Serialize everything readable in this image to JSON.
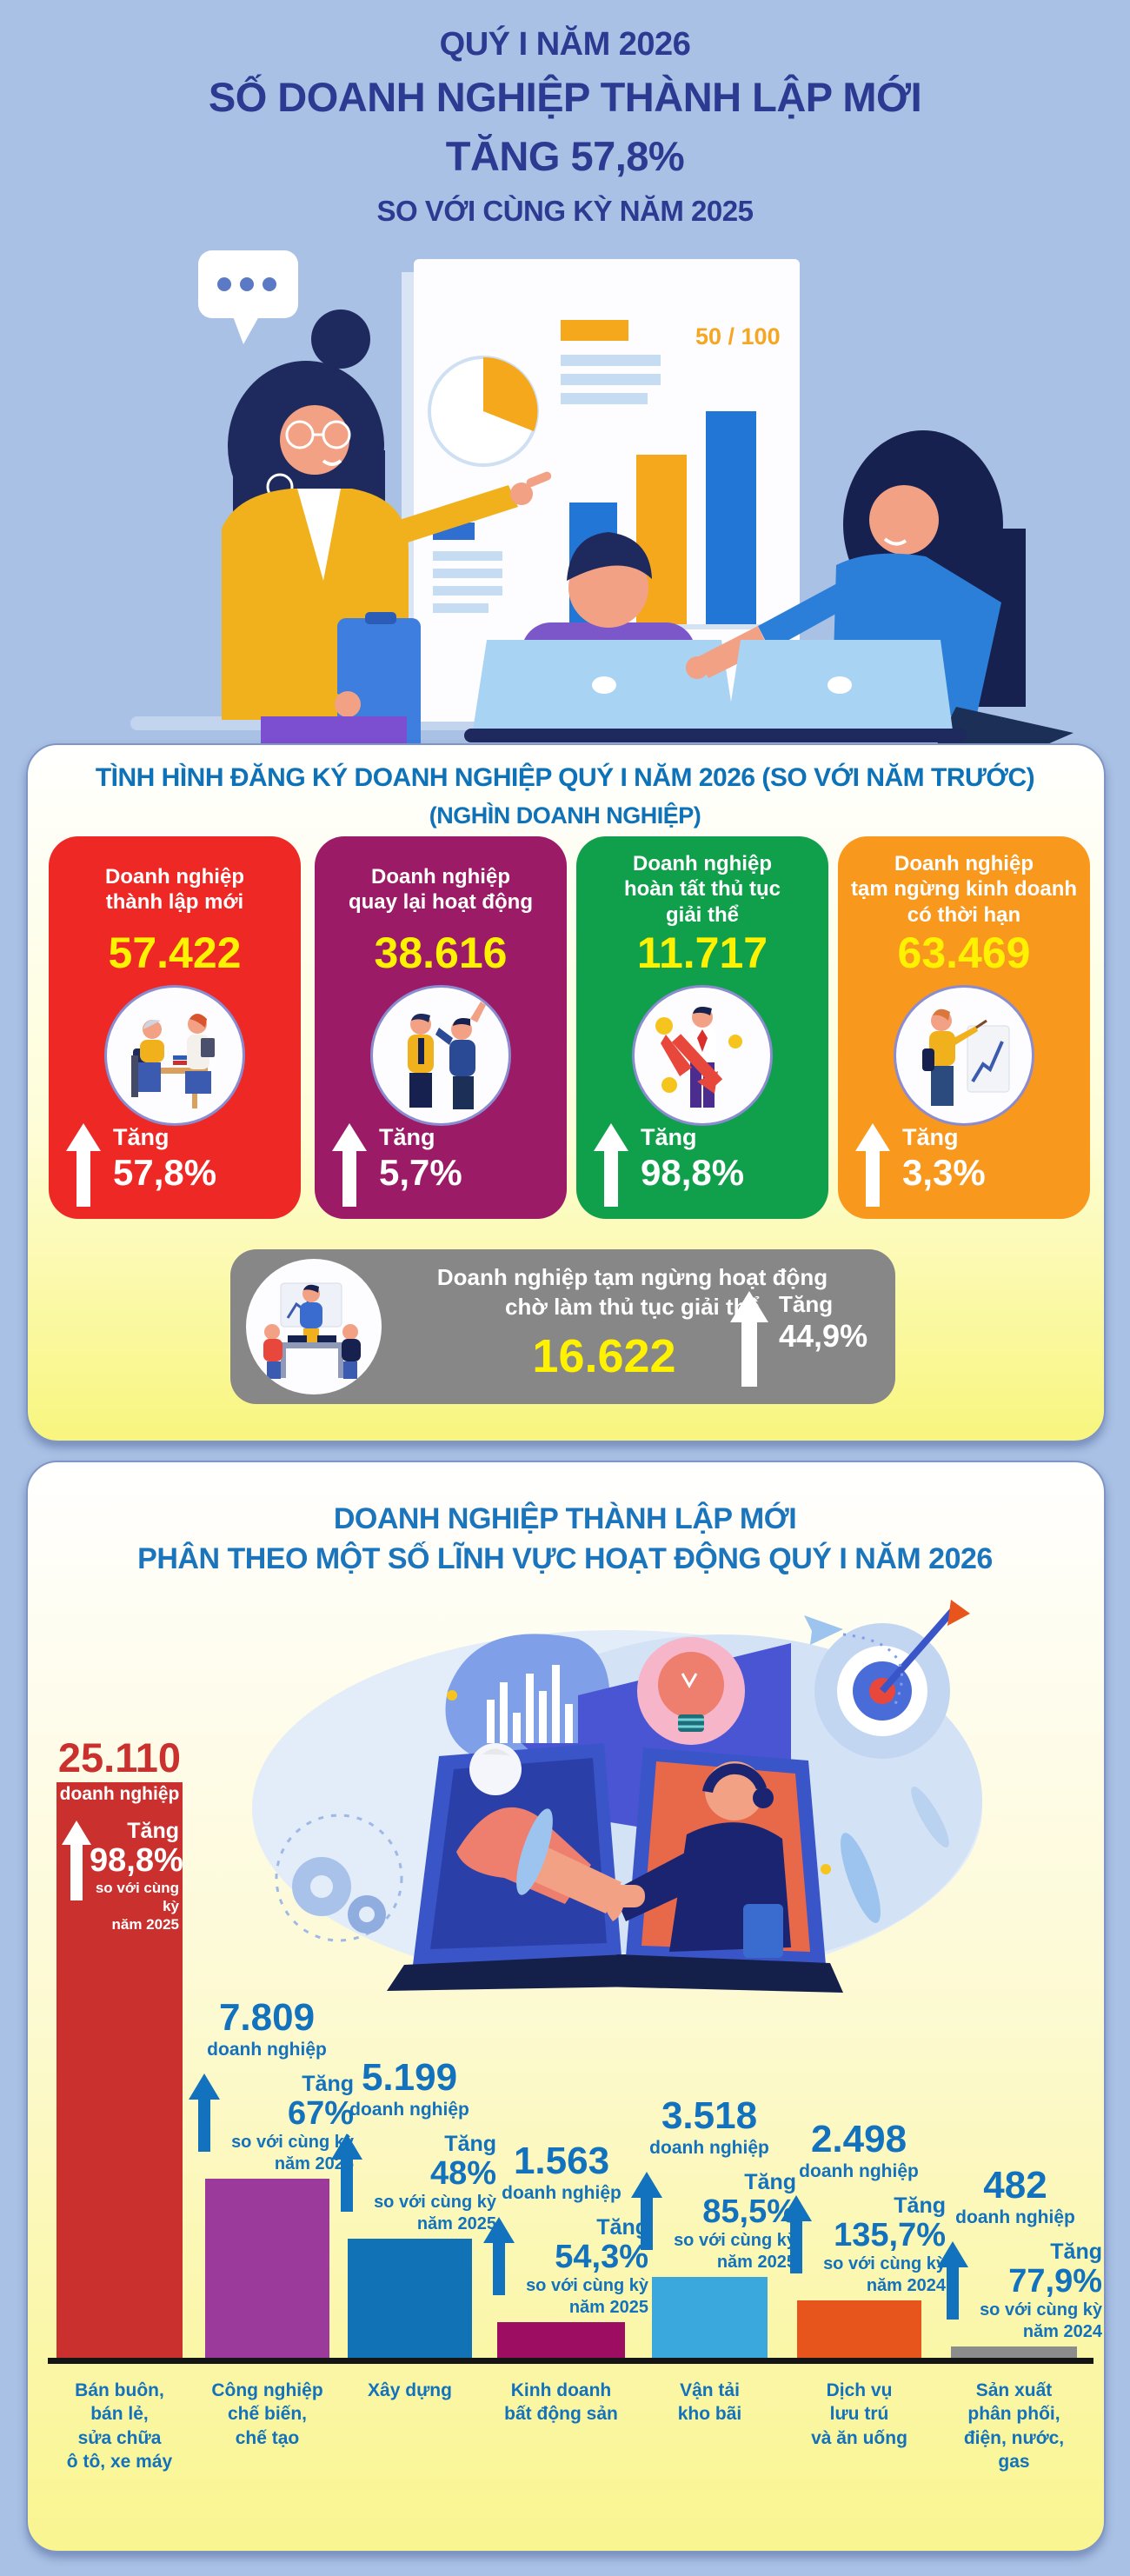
{
  "header": {
    "line1": "QUÝ I NĂM 2026",
    "line2": "SỐ DOANH NGHIỆP THÀNH LẬP MỚI",
    "line3": "TĂNG 57,8%",
    "line4": "SO VỚI CÙNG KỲ NĂM 2025"
  },
  "hero": {
    "score_label": "50 / 100"
  },
  "panel1": {
    "title": "TÌNH HÌNH ĐĂNG KÝ DOANH NGHIỆP QUÝ I NĂM 2026 (SO VỚI NĂM TRƯỚC)",
    "subtitle": "(NGHÌN DOANH NGHIỆP)",
    "cards": [
      {
        "title": "Doanh nghiệp\nthành lập mới",
        "value": "57.422",
        "rise_label": "Tăng",
        "rise_value": "57,8%",
        "color": "#ee2824"
      },
      {
        "title": "Doanh nghiệp\nquay lại hoạt động",
        "value": "38.616",
        "rise_label": "Tăng",
        "rise_value": "5,7%",
        "color": "#9b1b66"
      },
      {
        "title": "Doanh nghiệp\nhoàn tất thủ tục\ngiải thể",
        "value": "11.717",
        "rise_label": "Tăng",
        "rise_value": "98,8%",
        "color": "#10a04c"
      },
      {
        "title": "Doanh nghiệp\ntạm ngừng kinh doanh\ncó thời hạn",
        "value": "63.469",
        "rise_label": "Tăng",
        "rise_value": "3,3%",
        "color": "#f8981d"
      }
    ],
    "highlight_card": {
      "title": "Doanh nghiệp tạm ngừng hoạt động\nchờ làm thủ tục giải thể",
      "value": "16.622",
      "rise_label": "Tăng",
      "rise_value": "44,9%",
      "color": "#878787"
    }
  },
  "panel2": {
    "title": "DOANH NGHIỆP THÀNH LẬP MỚI",
    "subtitle": "PHÂN THEO MỘT SỐ LĨNH VỰC HOẠT ĐỘNG QUÝ I NĂM 2026"
  },
  "chart_data": {
    "type": "bar",
    "title": "Doanh nghiệp thành lập mới phân theo một số lĩnh vực hoạt động Quý I năm 2026",
    "unit_label": "doanh nghiệp",
    "categories": [
      "Bán buôn,\nbán lẻ,\nsửa chữa\nô tô, xe máy",
      "Công nghiệp\nchế biến,\nchế tạo",
      "Xây dựng",
      "Kinh doanh\nbất động sản",
      "Vận tải\nkho bãi",
      "Dịch vụ\nlưu trú\nvà ăn uống",
      "Sản xuất\nphân phối,\nđiện, nước,\ngas"
    ],
    "values": [
      25110,
      7809,
      5199,
      1563,
      3518,
      2498,
      482
    ],
    "value_labels": [
      "25.110",
      "7.809",
      "5.199",
      "1.563",
      "3.518",
      "2.498",
      "482"
    ],
    "rise": [
      {
        "label": "Tăng",
        "pct": "98,8%",
        "vs": "so với cùng kỳ",
        "year": "năm 2025"
      },
      {
        "label": "Tăng",
        "pct": "67%",
        "vs": "so với cùng kỳ",
        "year": "năm 2025"
      },
      {
        "label": "Tăng",
        "pct": "48%",
        "vs": "so với cùng kỳ",
        "year": "năm 2025"
      },
      {
        "label": "Tăng",
        "pct": "54,3%",
        "vs": "so với cùng kỳ",
        "year": "năm 2025"
      },
      {
        "label": "Tăng",
        "pct": "85,5%",
        "vs": "so với cùng kỳ",
        "year": "năm 2025"
      },
      {
        "label": "Tăng",
        "pct": "135,7%",
        "vs": "so với cùng kỳ",
        "year": "năm 2024"
      },
      {
        "label": "Tăng",
        "pct": "77,9%",
        "vs": "so với cùng kỳ",
        "year": "năm 2024"
      }
    ],
    "bar_colors": [
      "#c9302e",
      "#9b3a9b",
      "#1173b5",
      "#9d0e62",
      "#3aa8dc",
      "#e8551c",
      "#8c8c8c"
    ],
    "xlabel": "",
    "ylabel": "doanh nghiệp",
    "ylim": [
      0,
      26000
    ],
    "grid": false,
    "legend": false
  },
  "colors": {
    "page_bg": "#a9c1e4",
    "header_text": "#2c3a92",
    "panel_title_blue": "#0e72b8",
    "chart_text_blue": "#1272bd",
    "value_yellow": "#fff200",
    "axis_black": "#151515"
  }
}
